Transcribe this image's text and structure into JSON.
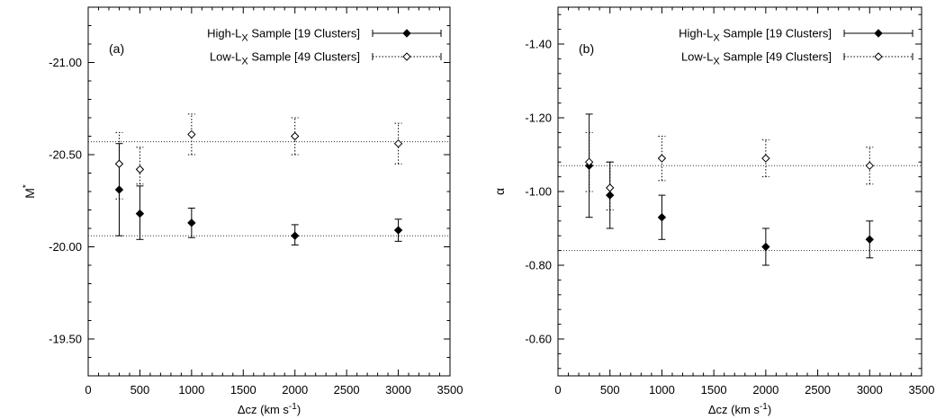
{
  "chart_data": [
    {
      "type": "scatter",
      "panel_label": "(a)",
      "xlabel": "Δcz (km s",
      "xlabel_sup": "-1",
      "xlabel_close": ")",
      "ylabel": "M",
      "ylabel_sup": "*",
      "xlim": [
        0,
        3500
      ],
      "ylim": [
        -19.3,
        -21.3
      ],
      "y_inverted": true,
      "x_ticks": [
        0,
        500,
        1000,
        1500,
        2000,
        2500,
        3000,
        3500
      ],
      "x_tick_labels": [
        "0",
        "500",
        "1000",
        "1500",
        "2000",
        "2500",
        "3000",
        "3500"
      ],
      "y_ticks": [
        -19.5,
        -20.0,
        -20.5,
        -21.0
      ],
      "y_tick_labels": [
        "-19.50",
        "-20.00",
        "-20.50",
        "-21.00"
      ],
      "reference_lines": [
        -20.57,
        -20.06
      ],
      "grid": false,
      "legend_position": "top-right",
      "series": [
        {
          "name_main": "High-L",
          "name_sub": "X",
          "name_rest": " Sample [19 Clusters]",
          "marker": "filled-diamond",
          "line_style": "solid",
          "x": [
            300,
            500,
            1000,
            2000,
            3000
          ],
          "y": [
            -20.31,
            -20.18,
            -20.13,
            -20.06,
            -20.09
          ],
          "err_low": [
            -20.06,
            -20.04,
            -20.05,
            -20.01,
            -20.03
          ],
          "err_high": [
            -20.56,
            -20.33,
            -20.21,
            -20.12,
            -20.15
          ]
        },
        {
          "name_main": "Low-L",
          "name_sub": "X",
          "name_rest": " Sample [49 Clusters]",
          "marker": "open-diamond",
          "line_style": "dotted",
          "x": [
            300,
            500,
            1000,
            2000,
            3000
          ],
          "y": [
            -20.45,
            -20.42,
            -20.61,
            -20.6,
            -20.56
          ],
          "err_low": [
            -20.26,
            -20.34,
            -20.5,
            -20.5,
            -20.45
          ],
          "err_high": [
            -20.62,
            -20.54,
            -20.72,
            -20.7,
            -20.67
          ]
        }
      ]
    },
    {
      "type": "scatter",
      "panel_label": "(b)",
      "xlabel": "Δcz (km s",
      "xlabel_sup": "-1",
      "xlabel_close": ")",
      "ylabel": "α",
      "xlim": [
        0,
        3500
      ],
      "ylim": [
        -0.5,
        -1.5
      ],
      "y_inverted": true,
      "x_ticks": [
        0,
        500,
        1000,
        1500,
        2000,
        2500,
        3000,
        3500
      ],
      "x_tick_labels": [
        "0",
        "500",
        "1000",
        "1500",
        "2000",
        "2500",
        "3000",
        "3500"
      ],
      "y_ticks": [
        -0.6,
        -0.8,
        -1.0,
        -1.2,
        -1.4
      ],
      "y_tick_labels": [
        "-0.60",
        "-0.80",
        "-1.00",
        "-1.20",
        "-1.40"
      ],
      "reference_lines": [
        -1.07,
        -0.84
      ],
      "grid": false,
      "legend_position": "top-right",
      "series": [
        {
          "name_main": "High-L",
          "name_sub": "X",
          "name_rest": " Sample [19 Clusters]",
          "marker": "filled-diamond",
          "line_style": "solid",
          "x": [
            300,
            500,
            1000,
            2000,
            3000
          ],
          "y": [
            -1.07,
            -0.99,
            -0.93,
            -0.85,
            -0.87
          ],
          "err_low": [
            -0.93,
            -0.9,
            -0.87,
            -0.8,
            -0.82
          ],
          "err_high": [
            -1.21,
            -1.08,
            -0.99,
            -0.9,
            -0.92
          ]
        },
        {
          "name_main": "Low-L",
          "name_sub": "X",
          "name_rest": " Sample [49 Clusters]",
          "marker": "open-diamond",
          "line_style": "dotted",
          "x": [
            300,
            500,
            1000,
            2000,
            3000
          ],
          "y": [
            -1.08,
            -1.01,
            -1.09,
            -1.09,
            -1.07
          ],
          "err_low": [
            -1.0,
            -0.95,
            -1.03,
            -1.04,
            -1.02
          ],
          "err_high": [
            -1.16,
            -1.08,
            -1.15,
            -1.14,
            -1.12
          ]
        }
      ]
    }
  ]
}
